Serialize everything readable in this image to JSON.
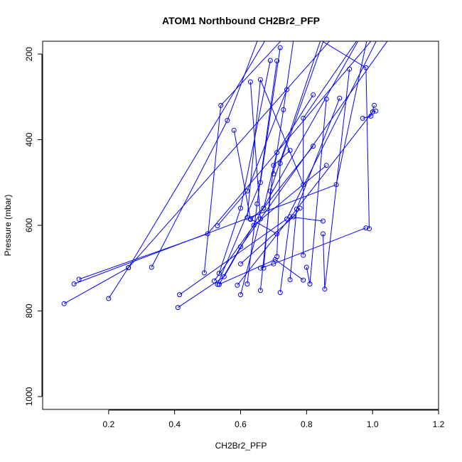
{
  "chart_data": {
    "type": "line",
    "title": "ATOM1 Northbound CH2Br2_PFP",
    "xlabel": "CH2Br2_PFP",
    "ylabel": "Pressure (mbar)",
    "xlim": [
      0.0,
      1.2
    ],
    "ylim": [
      1030,
      170
    ],
    "y_reversed": true,
    "x_ticks": [
      0.2,
      0.4,
      0.6,
      0.8,
      1.0,
      1.2
    ],
    "x_tick_labels": [
      "0.2",
      "0.4",
      "0.6",
      "0.8",
      "1.0",
      "1.2"
    ],
    "y_ticks": [
      200,
      400,
      600,
      800,
      1000
    ],
    "y_tick_labels": [
      "200",
      "400",
      "600",
      "800",
      "1000"
    ],
    "grid": false,
    "series_color": "#0000ff",
    "series": [
      {
        "points": [
          [
            0.065,
            783
          ],
          [
            0.26,
            699
          ],
          [
            0.72,
            110
          ]
        ]
      },
      {
        "points": [
          [
            0.11,
            726
          ],
          [
            0.5,
            620
          ],
          [
            1.05,
            120
          ]
        ]
      },
      {
        "points": [
          [
            0.095,
            737
          ],
          [
            0.89,
            505
          ],
          [
            1.0,
            105
          ]
        ]
      },
      {
        "points": [
          [
            0.2,
            771
          ],
          [
            0.26,
            699
          ],
          [
            0.95,
            100
          ]
        ]
      },
      {
        "points": [
          [
            0.33,
            698
          ],
          [
            0.56,
            355
          ],
          [
            0.66,
            150
          ]
        ]
      },
      {
        "points": [
          [
            0.41,
            792
          ],
          [
            0.55,
            720
          ],
          [
            1.0,
            110
          ]
        ]
      },
      {
        "points": [
          [
            0.415,
            762
          ],
          [
            0.74,
            585
          ],
          [
            1.05,
            110
          ]
        ]
      },
      {
        "points": [
          [
            0.49,
            711
          ],
          [
            0.54,
            320
          ],
          [
            0.8,
            105
          ]
        ]
      },
      {
        "points": [
          [
            0.53,
            738
          ],
          [
            0.66,
            500
          ],
          [
            0.72,
            185
          ]
        ]
      },
      {
        "points": [
          [
            0.53,
            601
          ],
          [
            0.62,
            520
          ],
          [
            0.74,
            283
          ]
        ]
      },
      {
        "points": [
          [
            0.535,
            712
          ],
          [
            0.6,
            560
          ],
          [
            0.69,
            215
          ]
        ]
      },
      {
        "points": [
          [
            0.535,
            738
          ],
          [
            0.705,
            680
          ],
          [
            0.79,
            728
          ]
        ]
      },
      {
        "points": [
          [
            0.58,
            378
          ],
          [
            0.63,
            585
          ],
          [
            0.71,
            620
          ]
        ]
      },
      {
        "points": [
          [
            0.6,
            762
          ],
          [
            0.66,
            585
          ],
          [
            0.63,
            265
          ]
        ]
      },
      {
        "points": [
          [
            0.62,
            737
          ],
          [
            0.65,
            550
          ],
          [
            0.71,
            216
          ]
        ]
      },
      {
        "points": [
          [
            0.62,
            582
          ],
          [
            0.66,
            260
          ],
          [
            0.79,
            505
          ]
        ]
      },
      {
        "points": [
          [
            0.63,
            586
          ],
          [
            0.67,
            560
          ],
          [
            0.82,
            415
          ]
        ]
      },
      {
        "points": [
          [
            0.67,
            700
          ],
          [
            0.69,
            520
          ],
          [
            0.85,
            150
          ]
        ]
      },
      {
        "points": [
          [
            0.66,
            752
          ],
          [
            0.7,
            460
          ],
          [
            0.75,
            425
          ]
        ]
      },
      {
        "points": [
          [
            0.67,
            560
          ],
          [
            0.71,
            430
          ],
          [
            0.82,
            295
          ]
        ]
      },
      {
        "points": [
          [
            0.71,
            673
          ],
          [
            0.72,
            455
          ],
          [
            0.86,
            150
          ]
        ]
      },
      {
        "points": [
          [
            0.72,
            757
          ],
          [
            0.75,
            580
          ],
          [
            0.85,
            590
          ]
        ]
      },
      {
        "points": [
          [
            0.75,
            727
          ],
          [
            0.77,
            562
          ],
          [
            0.9,
            303
          ]
        ]
      },
      {
        "points": [
          [
            0.79,
            670
          ],
          [
            0.79,
            350
          ],
          [
            0.96,
            160
          ]
        ]
      },
      {
        "points": [
          [
            0.8,
            698
          ],
          [
            0.81,
            737
          ],
          [
            0.86,
            305
          ]
        ]
      },
      {
        "points": [
          [
            0.85,
            620
          ],
          [
            0.855,
            749
          ],
          [
            0.93,
            235
          ]
        ]
      },
      {
        "points": [
          [
            0.72,
            110
          ],
          [
            0.98,
            232
          ],
          [
            0.99,
            608
          ]
        ]
      },
      {
        "points": [
          [
            0.97,
            350
          ],
          [
            0.995,
            345
          ],
          [
            1.005,
            320
          ]
        ]
      },
      {
        "points": [
          [
            0.59,
            740
          ],
          [
            1.0,
            335
          ],
          [
            1.01,
            333
          ]
        ]
      },
      {
        "points": [
          [
            0.535,
            738
          ],
          [
            0.6,
            650
          ],
          [
            1.1,
            110
          ]
        ]
      },
      {
        "points": [
          [
            0.7,
            480
          ],
          [
            0.73,
            330
          ],
          [
            0.77,
            115
          ]
        ]
      },
      {
        "points": [
          [
            0.6,
            690
          ],
          [
            0.76,
            580
          ],
          [
            0.78,
            560
          ]
        ]
      },
      {
        "points": [
          [
            0.66,
            700
          ],
          [
            0.7,
            690
          ],
          [
            0.98,
            606
          ]
        ]
      },
      {
        "points": [
          [
            0.52,
            730
          ],
          [
            0.64,
            600
          ],
          [
            0.86,
            460
          ]
        ]
      }
    ]
  }
}
